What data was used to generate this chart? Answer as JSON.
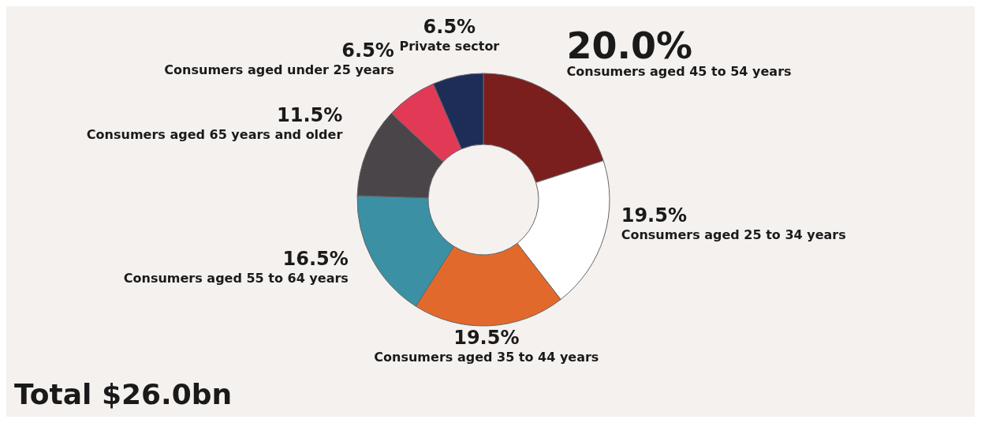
{
  "chart_data": {
    "type": "donut",
    "categories": [
      "Consumers aged 45 to 54 years",
      "Consumers aged 25 to 34 years",
      "Consumers aged 35 to 44 years",
      "Consumers aged 55 to 64 years",
      "Consumers aged 65 years and older",
      "Consumers aged under 25 years",
      "Private sector"
    ],
    "values": [
      20.0,
      19.5,
      19.5,
      16.5,
      11.5,
      6.5,
      6.5
    ],
    "value_labels": [
      "20.0%",
      "19.5%",
      "19.5%",
      "16.5%",
      "11.5%",
      "6.5%",
      "6.5%"
    ],
    "colors": [
      "#7b1e1e",
      "#ffffff",
      "#e2692c",
      "#3b90a4",
      "#4a4549",
      "#e23a56",
      "#1e2d58"
    ],
    "annotations": [
      "Total $26.0bn"
    ]
  }
}
